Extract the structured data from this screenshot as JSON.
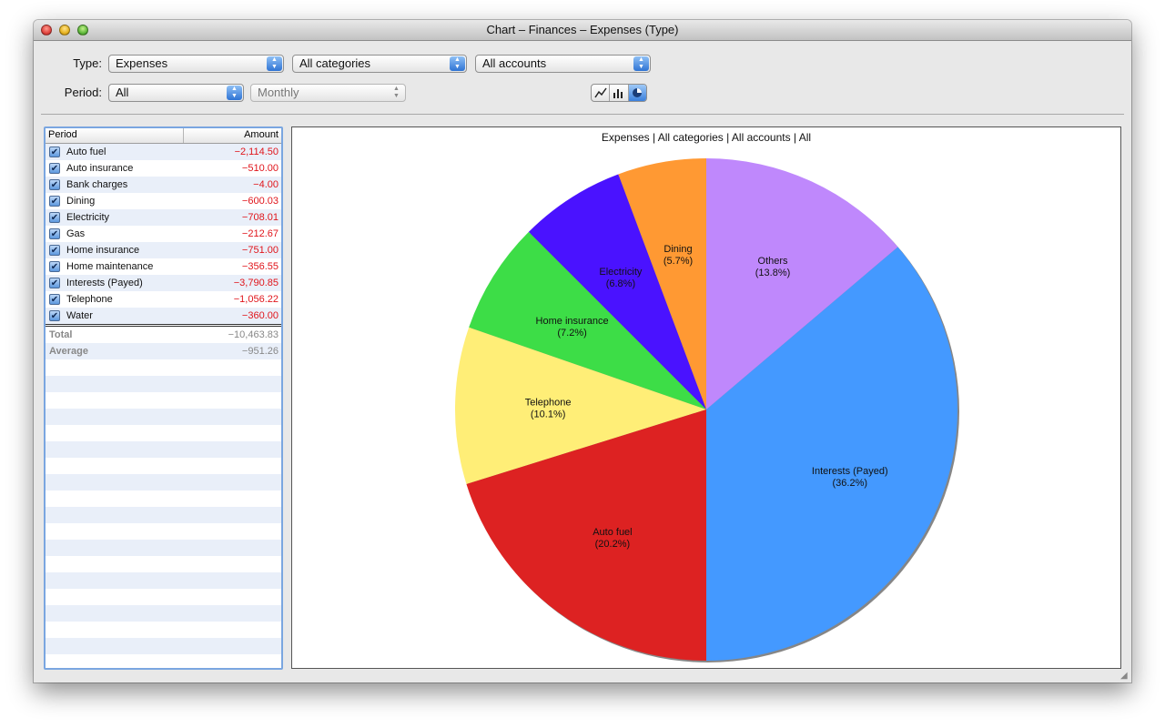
{
  "window": {
    "title": "Chart – Finances – Expenses (Type)"
  },
  "filters": {
    "type_label": "Type:",
    "period_label": "Period:",
    "type_value": "Expenses",
    "category_value": "All categories",
    "account_value": "All accounts",
    "period_value": "All",
    "interval_value": "Monthly"
  },
  "chart_type_options": [
    "line-chart-icon",
    "bar-chart-icon",
    "pie-chart-icon"
  ],
  "table": {
    "headers": {
      "period": "Period",
      "amount": "Amount"
    },
    "rows": [
      {
        "name": "Auto fuel",
        "amount": "−2,114.50"
      },
      {
        "name": "Auto insurance",
        "amount": "−510.00"
      },
      {
        "name": "Bank charges",
        "amount": "−4.00"
      },
      {
        "name": "Dining",
        "amount": "−600.03"
      },
      {
        "name": "Electricity",
        "amount": "−708.01"
      },
      {
        "name": "Gas",
        "amount": "−212.67"
      },
      {
        "name": "Home insurance",
        "amount": "−751.00"
      },
      {
        "name": "Home maintenance",
        "amount": "−356.55"
      },
      {
        "name": "Interests (Payed)",
        "amount": "−3,790.85"
      },
      {
        "name": "Telephone",
        "amount": "−1,056.22"
      },
      {
        "name": "Water",
        "amount": "−360.00"
      }
    ],
    "total": {
      "label": "Total",
      "amount": "−10,463.83"
    },
    "average": {
      "label": "Average",
      "amount": "−951.26"
    }
  },
  "chart_data": {
    "type": "pie",
    "title": "Expenses | All categories | All accounts | All",
    "slices": [
      {
        "label": "Interests (Payed)",
        "pct_label": "(36.2%)",
        "value": 36.2,
        "color": "#4499ff"
      },
      {
        "label": "Others",
        "pct_label": "(13.8%)",
        "value": 13.8,
        "color": "#bf88fc"
      },
      {
        "label": "Dining",
        "pct_label": "(5.7%)",
        "value": 5.7,
        "color": "#ff9933"
      },
      {
        "label": "Electricity",
        "pct_label": "(6.8%)",
        "value": 6.8,
        "color": "#4a12ff"
      },
      {
        "label": "Home insurance",
        "pct_label": "(7.2%)",
        "value": 7.2,
        "color": "#3ddd47"
      },
      {
        "label": "Telephone",
        "pct_label": "(10.1%)",
        "value": 10.1,
        "color": "#ffee77"
      },
      {
        "label": "Auto fuel",
        "pct_label": "(20.2%)",
        "value": 20.2,
        "color": "#dd2222"
      }
    ]
  }
}
